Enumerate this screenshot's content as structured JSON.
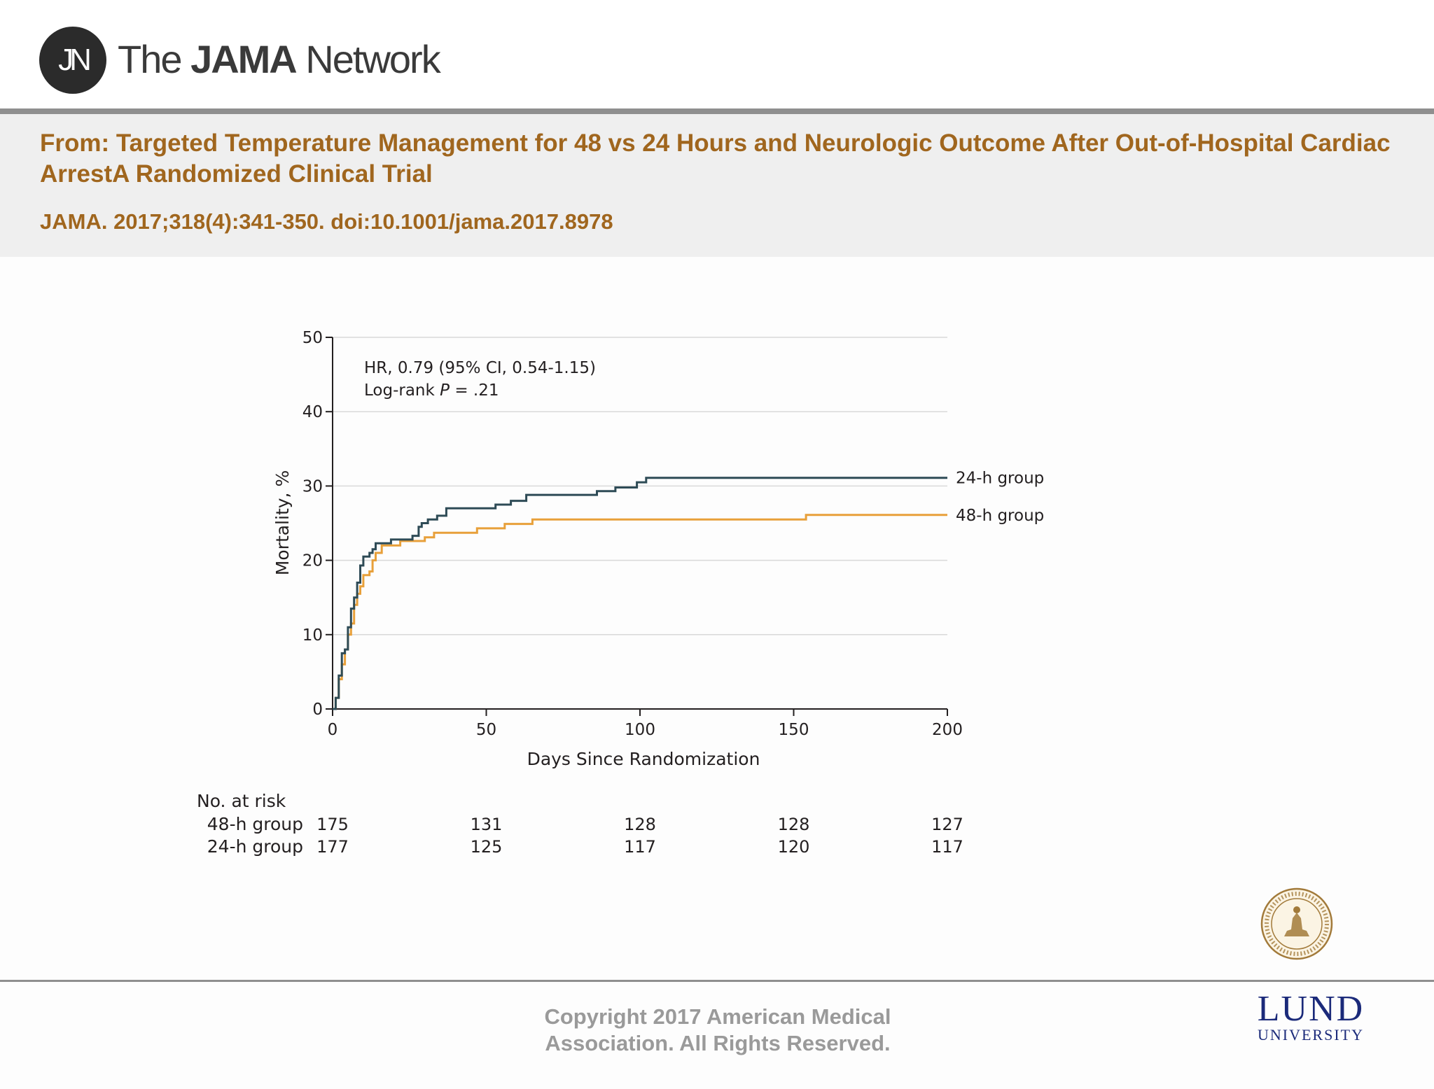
{
  "header": {
    "logo_initials": "JN",
    "brand_prefix": "The ",
    "brand_bold": "JAMA",
    "brand_suffix": " Network"
  },
  "article": {
    "from_line": "From: Targeted Temperature Management for 48 vs 24 Hours and Neurologic Outcome After Out-of-Hospital Cardiac ArrestA Randomized Clinical Trial",
    "citation": "JAMA. 2017;318(4):341-350. doi:10.1001/jama.2017.8978"
  },
  "chart_data": {
    "type": "line",
    "step": true,
    "title": "",
    "xlabel": "Days Since Randomization",
    "ylabel": "Mortality, %",
    "xlim": [
      0,
      200
    ],
    "ylim": [
      0,
      50
    ],
    "xticks": [
      0,
      50,
      100,
      150,
      200
    ],
    "yticks": [
      0,
      10,
      20,
      30,
      40,
      50
    ],
    "grid": "horizontal",
    "annotations": {
      "hr_text": "HR, 0.79 (95% CI, 0.54-1.15)",
      "logrank_prefix": "Log-rank ",
      "logrank_p": "P",
      "logrank_value": " = .21"
    },
    "series": [
      {
        "name": "24-h group",
        "color": "#2e4b56",
        "x": [
          0,
          1,
          1,
          2,
          2,
          3,
          3,
          4,
          4,
          5,
          5,
          6,
          6,
          7,
          7,
          8,
          8,
          9,
          9,
          10,
          10,
          12,
          12,
          13,
          13,
          14,
          14,
          16,
          16,
          19,
          19,
          26,
          26,
          28,
          28,
          29,
          29,
          31,
          31,
          34,
          34,
          37,
          37,
          53,
          53,
          58,
          58,
          63,
          63,
          86,
          86,
          92,
          92,
          99,
          99,
          102,
          102,
          200
        ],
        "y": [
          0,
          0,
          1.5,
          1.5,
          4.5,
          4.5,
          7.5,
          7.5,
          8,
          8,
          11,
          11,
          13.5,
          13.5,
          15,
          15,
          17,
          17,
          19.3,
          19.3,
          20.5,
          20.5,
          21,
          21,
          21.5,
          21.5,
          22.3,
          22.3,
          22.3,
          22.3,
          22.8,
          22.8,
          23.3,
          23.3,
          24.5,
          24.5,
          25,
          25,
          25.5,
          25.5,
          26,
          26,
          27,
          27,
          27.5,
          27.5,
          28,
          28,
          28.8,
          28.8,
          29.3,
          29.3,
          29.8,
          29.8,
          30.5,
          30.5,
          31.1,
          31.1
        ]
      },
      {
        "name": "48-h group",
        "color": "#e8a03a",
        "x": [
          0,
          1,
          1,
          2,
          2,
          3,
          3,
          4,
          4,
          5,
          5,
          6,
          6,
          7,
          7,
          8,
          8,
          9,
          9,
          10,
          10,
          12,
          12,
          13,
          13,
          14,
          14,
          16,
          16,
          22,
          22,
          30,
          30,
          33,
          33,
          47,
          47,
          56,
          56,
          65,
          65,
          154,
          154,
          200
        ],
        "y": [
          0,
          0,
          1.5,
          1.5,
          4,
          4,
          6,
          6,
          8,
          8,
          10,
          10,
          11.5,
          11.5,
          14,
          14,
          15.5,
          15.5,
          16.5,
          16.5,
          18,
          18,
          18.5,
          18.5,
          20,
          20,
          21,
          21,
          22,
          22,
          22.6,
          22.6,
          23.1,
          23.1,
          23.7,
          23.7,
          24.3,
          24.3,
          24.9,
          24.9,
          25.5,
          25.5,
          26.1,
          26.1
        ]
      }
    ],
    "risk_table": {
      "header": "No. at risk",
      "timepoints": [
        0,
        50,
        100,
        150,
        200
      ],
      "rows": [
        {
          "label": "48-h group",
          "values": [
            "175",
            "131",
            "128",
            "128",
            "127"
          ]
        },
        {
          "label": "24-h group",
          "values": [
            "177",
            "125",
            "117",
            "120",
            "117"
          ]
        }
      ]
    }
  },
  "footer": {
    "copyright_line1": "Copyright 2017 American Medical",
    "copyright_line2": "Association. All Rights Reserved.",
    "lund_word": "LUND",
    "lund_university": "UNIVERSITY"
  }
}
